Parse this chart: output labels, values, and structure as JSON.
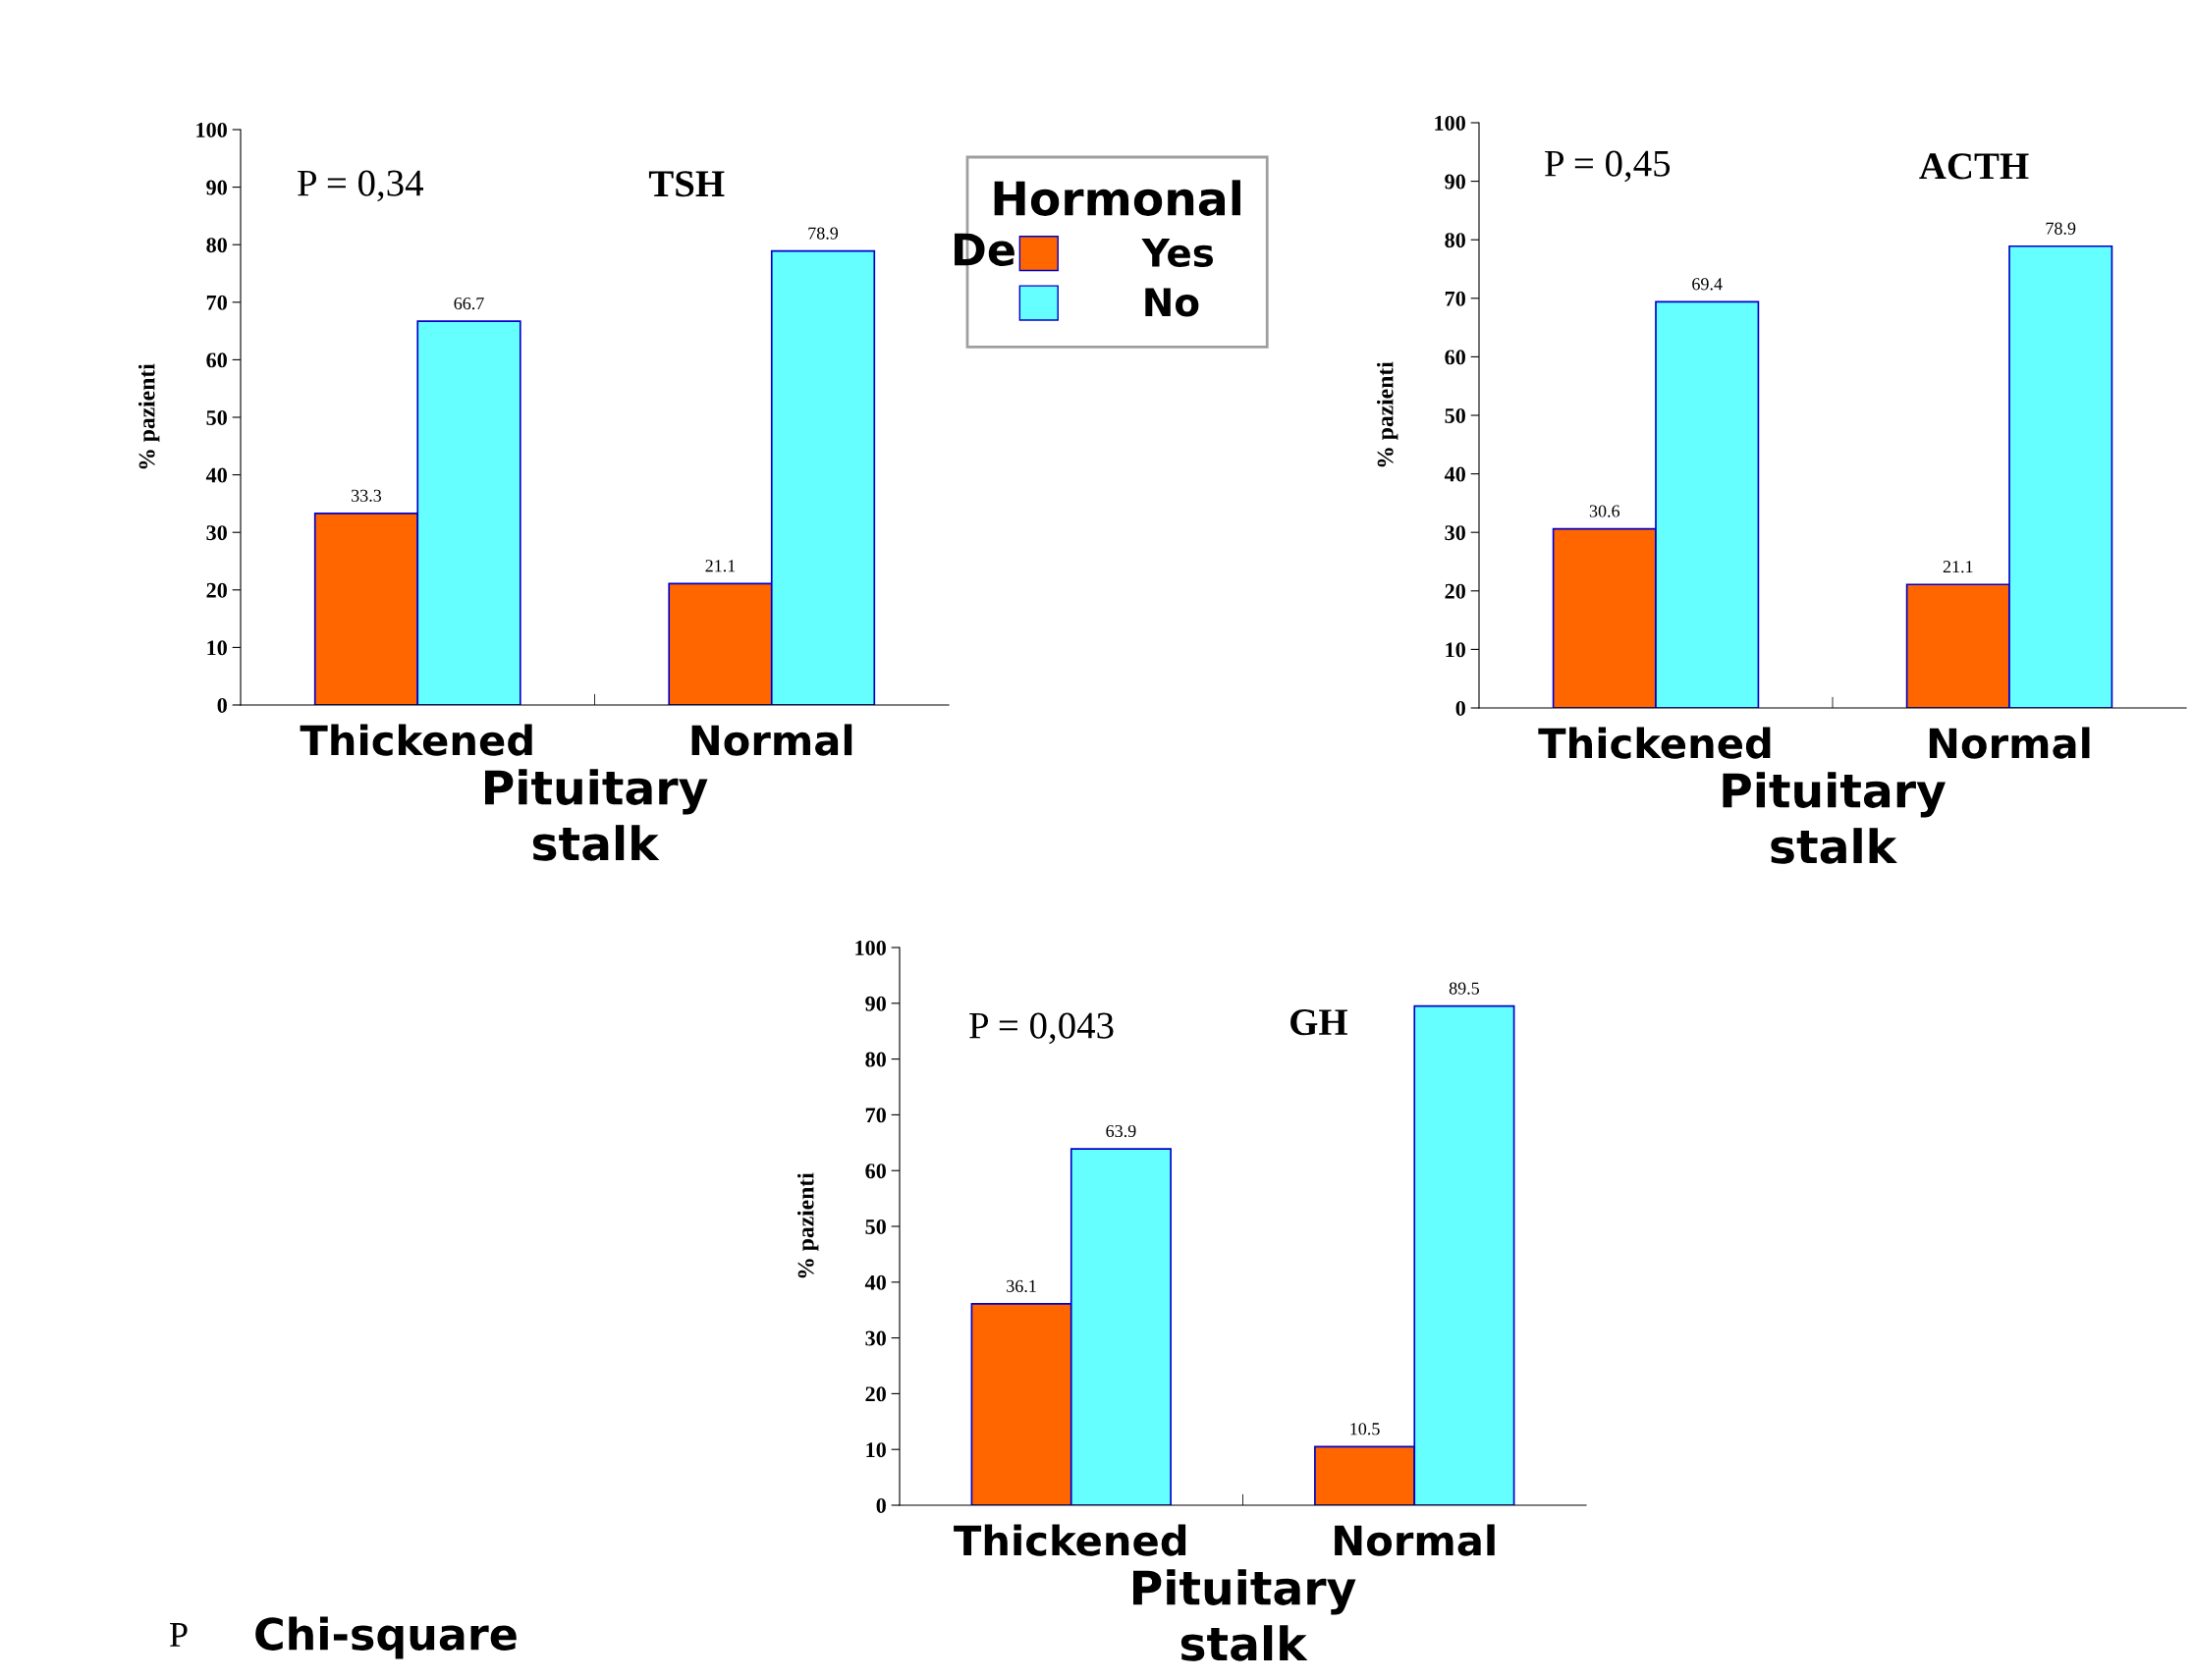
{
  "chart_data": [
    {
      "type": "bar",
      "title": "TSH",
      "categories": [
        "Thickened",
        "Normal"
      ],
      "xlabel": "Pituitary\nstalk",
      "ylabel": "% pazienti",
      "ylim": [
        0,
        100
      ],
      "yticks": [
        0,
        10,
        20,
        30,
        40,
        50,
        60,
        70,
        80,
        90,
        100
      ],
      "data_labels": true,
      "grid": false,
      "legend": "right",
      "legend_title": "Hormonal",
      "series": [
        {
          "name": "Yes",
          "color": "#ff6600",
          "values": [
            33.3,
            21.1
          ]
        },
        {
          "name": "No",
          "color": "#66ffff",
          "values": [
            66.7,
            78.9
          ]
        }
      ],
      "annotations": [
        "P = 0,34",
        "De"
      ]
    },
    {
      "type": "bar",
      "title": "ACTH",
      "categories": [
        "Thickened",
        "Normal"
      ],
      "xlabel": "Pituitary\nstalk",
      "ylabel": "% pazienti",
      "ylim": [
        0,
        100
      ],
      "yticks": [
        0,
        10,
        20,
        30,
        40,
        50,
        60,
        70,
        80,
        90,
        100
      ],
      "data_labels": true,
      "grid": false,
      "series": [
        {
          "color": "#ff6600",
          "values": [
            30.6,
            21.1
          ]
        },
        {
          "color": "#66ffff",
          "values": [
            69.4,
            78.9
          ]
        }
      ],
      "annotations": [
        "P = 0,45"
      ]
    },
    {
      "type": "bar",
      "title": "GH",
      "categories": [
        "Thickened",
        "Normal"
      ],
      "xlabel": "Pituitary\nstalk",
      "ylabel": "% pazienti",
      "ylim": [
        0,
        100
      ],
      "yticks": [
        0,
        10,
        20,
        30,
        40,
        50,
        60,
        70,
        80,
        90,
        100
      ],
      "data_labels": true,
      "grid": false,
      "series": [
        {
          "color": "#ff6600",
          "values": [
            36.1,
            10.5
          ]
        },
        {
          "color": "#66ffff",
          "values": [
            63.9,
            89.5
          ]
        }
      ],
      "annotations": [
        "P = 0,043",
        "P",
        "Chi-square"
      ]
    }
  ]
}
